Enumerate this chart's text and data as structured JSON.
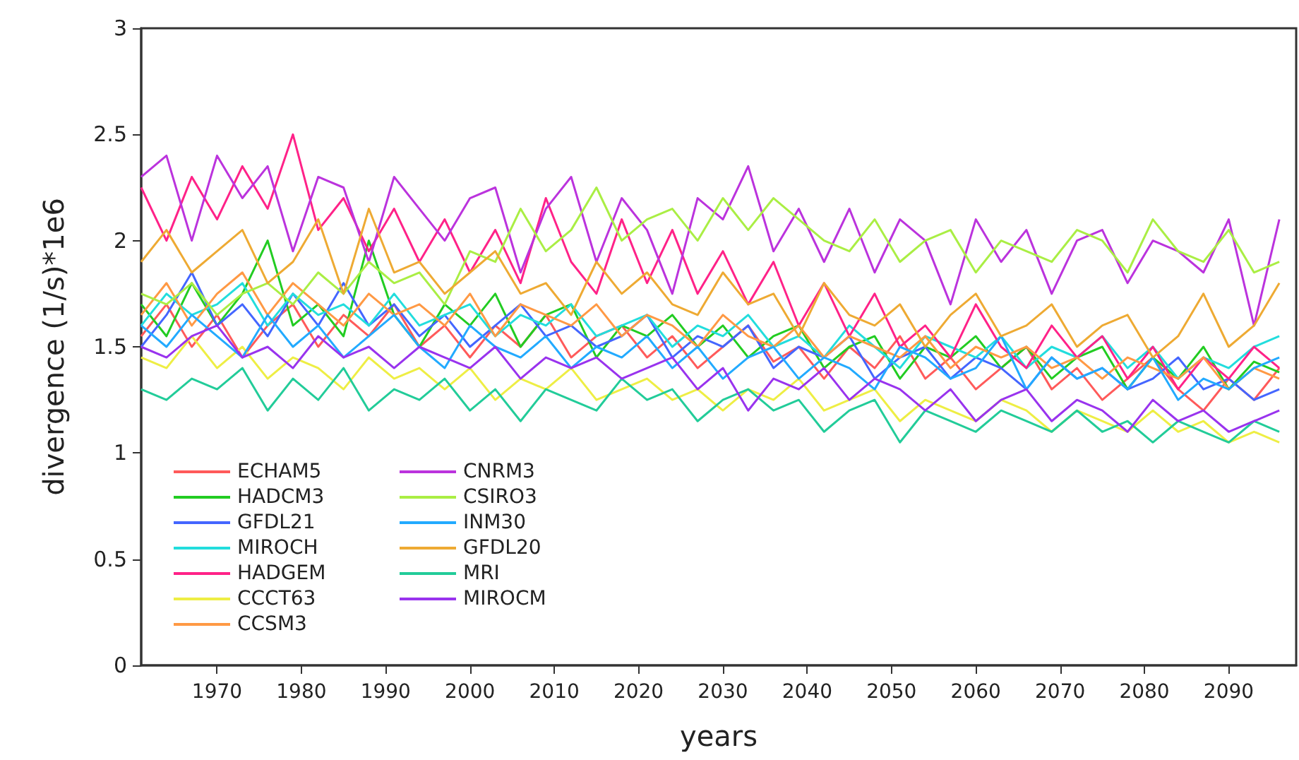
{
  "chart_data": {
    "type": "line",
    "xlabel": "years",
    "ylabel": "divergence (1/s)*1e6",
    "x": [
      1961,
      1964,
      1967,
      1970,
      1973,
      1976,
      1979,
      1982,
      1985,
      1988,
      1991,
      1994,
      1997,
      2000,
      2003,
      2006,
      2009,
      2012,
      2015,
      2018,
      2021,
      2024,
      2027,
      2030,
      2033,
      2036,
      2039,
      2042,
      2045,
      2048,
      2051,
      2054,
      2057,
      2060,
      2063,
      2066,
      2069,
      2072,
      2075,
      2078,
      2081,
      2084,
      2087,
      2090,
      2093,
      2096
    ],
    "xlim": [
      1961,
      2098
    ],
    "xticks": [
      1970,
      1980,
      1990,
      2000,
      2010,
      2020,
      2030,
      2040,
      2050,
      2060,
      2070,
      2080,
      2090
    ],
    "ylim": [
      0,
      3
    ],
    "yticks": [
      0,
      0.5,
      1,
      1.5,
      2,
      2.5,
      3
    ],
    "grid": false,
    "legend": "bottom left",
    "marker": "none",
    "line_style": "solid",
    "series": [
      {
        "name": "ECHAM5",
        "color": "#ff5a5a",
        "values": [
          1.55,
          1.7,
          1.5,
          1.65,
          1.45,
          1.6,
          1.7,
          1.5,
          1.65,
          1.55,
          1.7,
          1.5,
          1.6,
          1.45,
          1.6,
          1.5,
          1.65,
          1.45,
          1.55,
          1.6,
          1.45,
          1.55,
          1.4,
          1.5,
          1.6,
          1.43,
          1.5,
          1.35,
          1.5,
          1.4,
          1.55,
          1.35,
          1.45,
          1.3,
          1.4,
          1.5,
          1.3,
          1.4,
          1.25,
          1.35,
          1.45,
          1.3,
          1.2,
          1.35,
          1.25,
          1.4
        ]
      },
      {
        "name": "HADCM3",
        "color": "#22cc22",
        "values": [
          1.7,
          1.55,
          1.8,
          1.6,
          1.75,
          2.0,
          1.6,
          1.7,
          1.55,
          2.0,
          1.65,
          1.5,
          1.7,
          1.6,
          1.75,
          1.5,
          1.65,
          1.7,
          1.45,
          1.6,
          1.55,
          1.65,
          1.5,
          1.6,
          1.45,
          1.55,
          1.6,
          1.4,
          1.5,
          1.55,
          1.35,
          1.5,
          1.45,
          1.55,
          1.4,
          1.5,
          1.35,
          1.45,
          1.5,
          1.3,
          1.45,
          1.35,
          1.5,
          1.3,
          1.43,
          1.38
        ]
      },
      {
        "name": "GFDL21",
        "color": "#4466ff",
        "values": [
          1.5,
          1.65,
          1.85,
          1.6,
          1.7,
          1.55,
          1.75,
          1.6,
          1.8,
          1.6,
          1.7,
          1.55,
          1.65,
          1.5,
          1.6,
          1.7,
          1.55,
          1.6,
          1.5,
          1.55,
          1.65,
          1.45,
          1.55,
          1.5,
          1.6,
          1.4,
          1.5,
          1.45,
          1.55,
          1.35,
          1.45,
          1.5,
          1.35,
          1.45,
          1.4,
          1.3,
          1.45,
          1.35,
          1.4,
          1.3,
          1.35,
          1.45,
          1.3,
          1.35,
          1.25,
          1.3
        ]
      },
      {
        "name": "MIROCH",
        "color": "#22dddd",
        "values": [
          1.6,
          1.75,
          1.65,
          1.7,
          1.8,
          1.6,
          1.75,
          1.65,
          1.7,
          1.6,
          1.75,
          1.6,
          1.65,
          1.7,
          1.55,
          1.65,
          1.6,
          1.7,
          1.55,
          1.6,
          1.65,
          1.5,
          1.6,
          1.55,
          1.65,
          1.5,
          1.55,
          1.45,
          1.6,
          1.5,
          1.4,
          1.55,
          1.5,
          1.45,
          1.55,
          1.4,
          1.5,
          1.45,
          1.55,
          1.4,
          1.5,
          1.35,
          1.45,
          1.4,
          1.5,
          1.55
        ]
      },
      {
        "name": "HADGEM",
        "color": "#ff2288",
        "values": [
          2.25,
          2.0,
          2.3,
          2.1,
          2.35,
          2.15,
          2.5,
          2.05,
          2.2,
          1.95,
          2.15,
          1.9,
          2.1,
          1.85,
          2.05,
          1.8,
          2.2,
          1.9,
          1.75,
          2.1,
          1.8,
          2.05,
          1.75,
          1.95,
          1.7,
          1.9,
          1.6,
          1.8,
          1.55,
          1.75,
          1.5,
          1.6,
          1.45,
          1.7,
          1.5,
          1.4,
          1.6,
          1.45,
          1.55,
          1.35,
          1.5,
          1.3,
          1.45,
          1.35,
          1.5,
          1.4
        ]
      },
      {
        "name": "CCCT63",
        "color": "#eeee44",
        "values": [
          1.45,
          1.4,
          1.55,
          1.4,
          1.5,
          1.35,
          1.45,
          1.4,
          1.3,
          1.45,
          1.35,
          1.4,
          1.3,
          1.4,
          1.25,
          1.35,
          1.3,
          1.4,
          1.25,
          1.3,
          1.35,
          1.25,
          1.3,
          1.2,
          1.3,
          1.25,
          1.35,
          1.2,
          1.25,
          1.3,
          1.15,
          1.25,
          1.2,
          1.15,
          1.25,
          1.2,
          1.1,
          1.2,
          1.15,
          1.1,
          1.2,
          1.1,
          1.15,
          1.05,
          1.1,
          1.05
        ]
      },
      {
        "name": "CCSM3",
        "color": "#ff9944",
        "values": [
          1.65,
          1.8,
          1.6,
          1.75,
          1.85,
          1.65,
          1.8,
          1.7,
          1.6,
          1.75,
          1.65,
          1.7,
          1.6,
          1.75,
          1.55,
          1.7,
          1.65,
          1.6,
          1.7,
          1.55,
          1.65,
          1.6,
          1.5,
          1.65,
          1.55,
          1.5,
          1.6,
          1.45,
          1.55,
          1.5,
          1.45,
          1.55,
          1.4,
          1.5,
          1.45,
          1.5,
          1.4,
          1.45,
          1.35,
          1.45,
          1.4,
          1.35,
          1.45,
          1.3,
          1.4,
          1.35
        ]
      },
      {
        "name": "CNRM3",
        "color": "#bb33dd",
        "values": [
          2.3,
          2.4,
          2.0,
          2.4,
          2.2,
          2.35,
          1.95,
          2.3,
          2.25,
          1.9,
          2.3,
          2.15,
          2.0,
          2.2,
          2.25,
          1.85,
          2.15,
          2.3,
          1.9,
          2.2,
          2.05,
          1.75,
          2.2,
          2.1,
          2.35,
          1.95,
          2.15,
          1.9,
          2.15,
          1.85,
          2.1,
          2.0,
          1.7,
          2.1,
          1.9,
          2.05,
          1.75,
          2.0,
          2.05,
          1.8,
          2.0,
          1.95,
          1.85,
          2.1,
          1.6,
          2.1
        ]
      },
      {
        "name": "CSIRO3",
        "color": "#aaee44",
        "values": [
          1.75,
          1.7,
          1.8,
          1.65,
          1.75,
          1.8,
          1.7,
          1.85,
          1.75,
          1.9,
          1.8,
          1.85,
          1.7,
          1.95,
          1.9,
          2.15,
          1.95,
          2.05,
          2.25,
          2.0,
          2.1,
          2.15,
          2.0,
          2.2,
          2.05,
          2.2,
          2.1,
          2.0,
          1.95,
          2.1,
          1.9,
          2.0,
          2.05,
          1.85,
          2.0,
          1.95,
          1.9,
          2.05,
          2.0,
          1.85,
          2.1,
          1.95,
          1.9,
          2.05,
          1.85,
          1.9
        ]
      },
      {
        "name": "INM30",
        "color": "#22aaff",
        "values": [
          1.6,
          1.5,
          1.65,
          1.55,
          1.45,
          1.65,
          1.5,
          1.6,
          1.45,
          1.55,
          1.65,
          1.5,
          1.4,
          1.6,
          1.5,
          1.45,
          1.55,
          1.4,
          1.5,
          1.45,
          1.55,
          1.4,
          1.5,
          1.35,
          1.45,
          1.5,
          1.35,
          1.45,
          1.4,
          1.3,
          1.5,
          1.45,
          1.35,
          1.4,
          1.55,
          1.3,
          1.45,
          1.35,
          1.4,
          1.3,
          1.45,
          1.25,
          1.35,
          1.3,
          1.4,
          1.45
        ]
      },
      {
        "name": "GFDL20",
        "color": "#eeaa33",
        "values": [
          1.9,
          2.05,
          1.85,
          1.95,
          2.05,
          1.8,
          1.9,
          2.1,
          1.75,
          2.15,
          1.85,
          1.9,
          1.75,
          1.85,
          1.95,
          1.75,
          1.8,
          1.65,
          1.9,
          1.75,
          1.85,
          1.7,
          1.65,
          1.85,
          1.7,
          1.75,
          1.55,
          1.8,
          1.65,
          1.6,
          1.7,
          1.5,
          1.65,
          1.75,
          1.55,
          1.6,
          1.7,
          1.5,
          1.6,
          1.65,
          1.45,
          1.55,
          1.75,
          1.5,
          1.6,
          1.8
        ]
      },
      {
        "name": "MRI",
        "color": "#22cc99",
        "values": [
          1.3,
          1.25,
          1.35,
          1.3,
          1.4,
          1.2,
          1.35,
          1.25,
          1.4,
          1.2,
          1.3,
          1.25,
          1.35,
          1.2,
          1.3,
          1.15,
          1.3,
          1.25,
          1.2,
          1.35,
          1.25,
          1.3,
          1.15,
          1.25,
          1.3,
          1.2,
          1.25,
          1.1,
          1.2,
          1.25,
          1.05,
          1.2,
          1.15,
          1.1,
          1.2,
          1.15,
          1.1,
          1.2,
          1.1,
          1.15,
          1.05,
          1.15,
          1.1,
          1.05,
          1.15,
          1.1
        ]
      },
      {
        "name": "MIROCM",
        "color": "#9933ee",
        "values": [
          1.5,
          1.45,
          1.55,
          1.6,
          1.45,
          1.5,
          1.4,
          1.55,
          1.45,
          1.5,
          1.4,
          1.5,
          1.45,
          1.4,
          1.5,
          1.35,
          1.45,
          1.4,
          1.45,
          1.35,
          1.4,
          1.45,
          1.3,
          1.4,
          1.2,
          1.35,
          1.3,
          1.4,
          1.25,
          1.35,
          1.3,
          1.2,
          1.3,
          1.15,
          1.25,
          1.3,
          1.15,
          1.25,
          1.2,
          1.1,
          1.25,
          1.15,
          1.2,
          1.1,
          1.15,
          1.2
        ]
      }
    ]
  }
}
